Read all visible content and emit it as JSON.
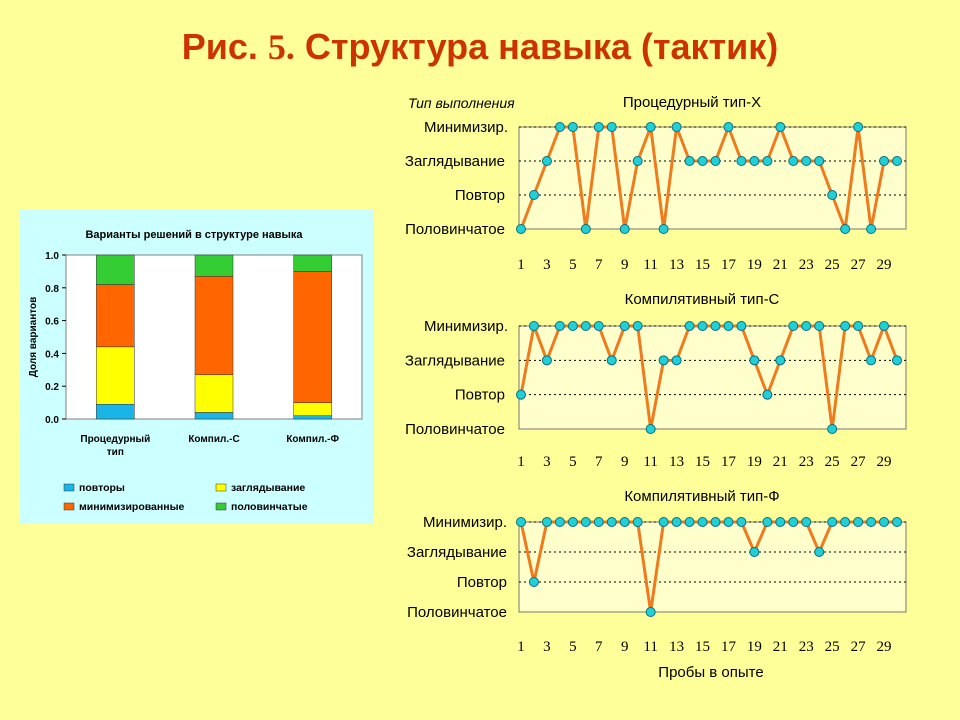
{
  "slide": {
    "title_prefix": "Рис.",
    "title_number": "5.",
    "title_rest": "Структура навыка (тактик)",
    "execution_type_label": "Тип выполнения"
  },
  "colors": {
    "background": "#FFFF99",
    "title": "#CC3300",
    "line": "#F07A1E",
    "marker": "#20D0D8",
    "plot_bg": "#FFFFCC",
    "panel_bg": "#CCFFFF"
  },
  "chart_data": [
    {
      "type": "bar",
      "stacked": true,
      "title": "Варианты решений в структуре навыка",
      "xlabel": "",
      "ylabel": "Доля вариантов",
      "ylim": [
        0,
        1
      ],
      "yticks": [
        "0.0",
        "0.2",
        "0.4",
        "0.6",
        "0.8",
        "1.0"
      ],
      "categories": [
        "Процедурный тип",
        "Компил.-С",
        "Компил.-Ф"
      ],
      "legend_position": "bottom",
      "series": [
        {
          "name": "повторы",
          "color": "#19B5E6",
          "values": [
            0.09,
            0.04,
            0.02
          ]
        },
        {
          "name": "заглядывание",
          "color": "#FFFF00",
          "values": [
            0.35,
            0.23,
            0.08
          ]
        },
        {
          "name": "минимизированные",
          "color": "#FF6600",
          "values": [
            0.38,
            0.6,
            0.8
          ]
        },
        {
          "name": "половинчатые",
          "color": "#33CC33",
          "values": [
            0.18,
            0.13,
            0.1
          ]
        }
      ]
    },
    {
      "type": "line",
      "title": "Процедурный тип-Х",
      "xlabel": "",
      "ylabel": "",
      "y_categories": [
        "Половинчатое",
        "Повтор",
        "Заглядывание",
        "Минимизир."
      ],
      "x": [
        1,
        2,
        3,
        4,
        5,
        6,
        7,
        8,
        9,
        10,
        11,
        12,
        13,
        14,
        15,
        16,
        17,
        18,
        19,
        20,
        21,
        22,
        23,
        24,
        25,
        26,
        27,
        28,
        29,
        30
      ],
      "x_tick_labels": [
        "1",
        "3",
        "5",
        "7",
        "9",
        "11",
        "13",
        "15",
        "17",
        "19",
        "21",
        "23",
        "25",
        "27",
        "29"
      ],
      "values": [
        0,
        1,
        2,
        3,
        3,
        0,
        3,
        3,
        0,
        2,
        3,
        0,
        3,
        2,
        2,
        2,
        3,
        2,
        2,
        2,
        3,
        2,
        2,
        2,
        1,
        0,
        3,
        0,
        2,
        2
      ]
    },
    {
      "type": "line",
      "title": "Компилятивный тип-С",
      "xlabel": "",
      "ylabel": "",
      "y_categories": [
        "Половинчатое",
        "Повтор",
        "Заглядывание",
        "Минимизир."
      ],
      "x": [
        1,
        2,
        3,
        4,
        5,
        6,
        7,
        8,
        9,
        10,
        11,
        12,
        13,
        14,
        15,
        16,
        17,
        18,
        19,
        20,
        21,
        22,
        23,
        24,
        25,
        26,
        27,
        28,
        29,
        30
      ],
      "x_tick_labels": [
        "1",
        "3",
        "5",
        "7",
        "9",
        "11",
        "13",
        "15",
        "17",
        "19",
        "21",
        "23",
        "25",
        "27",
        "29"
      ],
      "values": [
        1,
        3,
        2,
        3,
        3,
        3,
        3,
        2,
        3,
        3,
        0,
        2,
        2,
        3,
        3,
        3,
        3,
        3,
        2,
        1,
        2,
        3,
        3,
        3,
        0,
        3,
        3,
        2,
        3,
        2
      ]
    },
    {
      "type": "line",
      "title": "Компилятивный тип-Ф",
      "xlabel": "Пробы в опыте",
      "ylabel": "",
      "y_categories": [
        "Половинчатое",
        "Повтор",
        "Заглядывание",
        "Минимизир."
      ],
      "x": [
        1,
        2,
        3,
        4,
        5,
        6,
        7,
        8,
        9,
        10,
        11,
        12,
        13,
        14,
        15,
        16,
        17,
        18,
        19,
        20,
        21,
        22,
        23,
        24,
        25,
        26,
        27,
        28,
        29,
        30
      ],
      "x_tick_labels": [
        "1",
        "3",
        "5",
        "7",
        "9",
        "11",
        "13",
        "15",
        "17",
        "19",
        "21",
        "23",
        "25",
        "27",
        "29"
      ],
      "values": [
        3,
        1,
        3,
        3,
        3,
        3,
        3,
        3,
        3,
        3,
        0,
        3,
        3,
        3,
        3,
        3,
        3,
        3,
        2,
        3,
        3,
        3,
        3,
        2,
        3,
        3,
        3,
        3,
        3,
        3
      ]
    }
  ]
}
